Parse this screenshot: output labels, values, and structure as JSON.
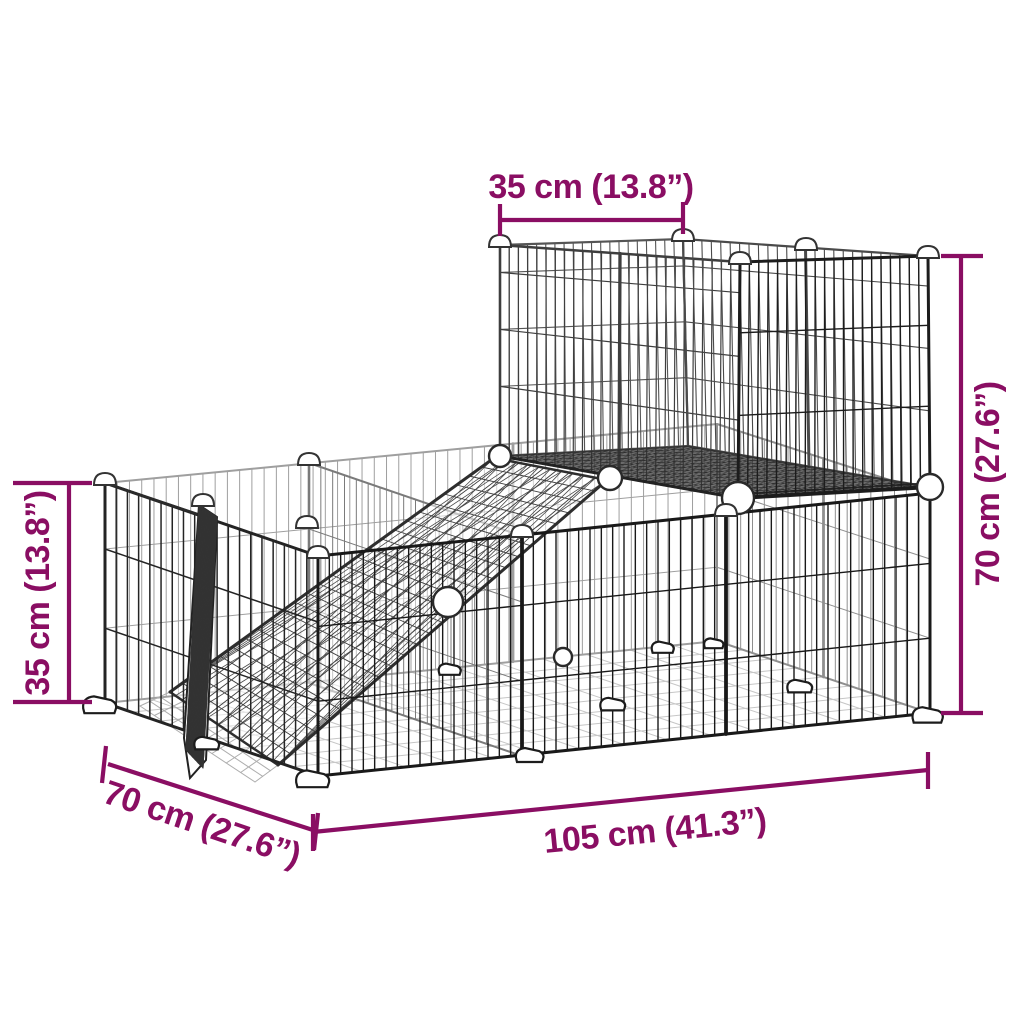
{
  "diagram": {
    "description": "Black wire-grid pet playpen with raised platform, access ramp and open hatch door, annotated with product dimensions",
    "colors": {
      "annotation": "#8A0E63",
      "wire_dark": "#1c1c1c",
      "wire_mid": "#6a6a6a",
      "wire_light": "#9f9f9f",
      "floor_grid": "#c6c6c6",
      "platform_fill": "#3f3f3f",
      "background": "#ffffff"
    },
    "dimensions": {
      "top_width": {
        "label": "35 cm (13.8”)",
        "value_cm": 35,
        "value_in": 13.8
      },
      "right_height": {
        "label": "70 cm (27.6”)",
        "value_cm": 70,
        "value_in": 27.6
      },
      "left_height": {
        "label": "35 cm (13.8”)",
        "value_cm": 35,
        "value_in": 13.8
      },
      "depth": {
        "label": "70 cm (27.6”)",
        "value_cm": 70,
        "value_in": 27.6
      },
      "length": {
        "label": "105 cm (41.3”)",
        "value_cm": 105,
        "value_in": 41.3
      }
    }
  }
}
